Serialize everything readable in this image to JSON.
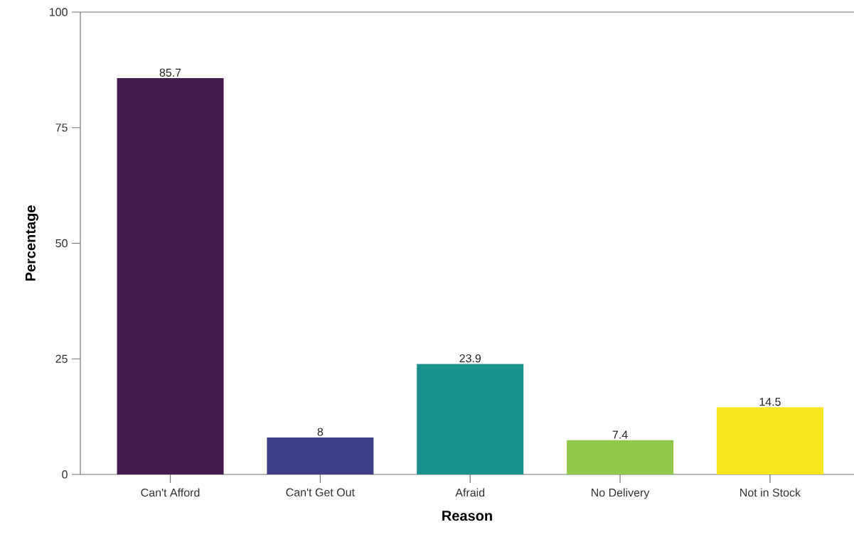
{
  "chart_data": {
    "type": "bar",
    "xlabel": "Reason",
    "ylabel": "Percentage",
    "categories": [
      "Can't Afford",
      "Can't Get Out",
      "Afraid",
      "No Delivery",
      "Not in Stock"
    ],
    "values": [
      85.7,
      8,
      23.9,
      7.4,
      14.5
    ],
    "colors": [
      "#431b4d",
      "#403d87",
      "#1a928b",
      "#91c84c",
      "#f6e71d"
    ],
    "ylim": [
      0,
      100
    ],
    "yticks": [
      0,
      25,
      50,
      75,
      100
    ],
    "data_labels": true
  }
}
